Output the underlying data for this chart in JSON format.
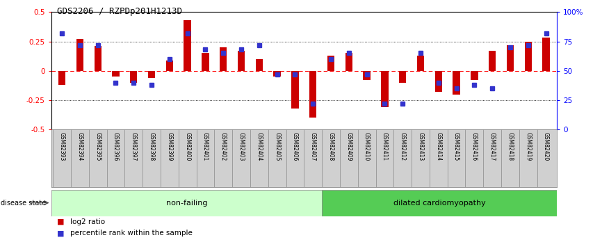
{
  "title": "GDS2206 / RZPDp201H1213D",
  "samples": [
    "GSM82393",
    "GSM82394",
    "GSM82395",
    "GSM82396",
    "GSM82397",
    "GSM82398",
    "GSM82399",
    "GSM82400",
    "GSM82401",
    "GSM82402",
    "GSM82403",
    "GSM82404",
    "GSM82405",
    "GSM82406",
    "GSM82407",
    "GSM82408",
    "GSM82409",
    "GSM82410",
    "GSM82411",
    "GSM82412",
    "GSM82413",
    "GSM82414",
    "GSM82415",
    "GSM82416",
    "GSM82417",
    "GSM82418",
    "GSM82419",
    "GSM82420"
  ],
  "log2_ratio": [
    -0.12,
    0.27,
    0.21,
    -0.05,
    -0.1,
    -0.06,
    0.09,
    0.43,
    0.15,
    0.2,
    0.17,
    0.1,
    -0.05,
    -0.32,
    -0.4,
    0.13,
    0.15,
    -0.08,
    -0.31,
    -0.1,
    0.13,
    -0.18,
    -0.2,
    -0.08,
    0.17,
    0.22,
    0.25,
    0.28
  ],
  "percentile": [
    82,
    72,
    72,
    40,
    40,
    38,
    60,
    82,
    68,
    65,
    68,
    72,
    47,
    47,
    22,
    60,
    65,
    47,
    22,
    22,
    65,
    40,
    35,
    38,
    35,
    70,
    72,
    82
  ],
  "non_failing_count": 15,
  "non_failing_label": "non-failing",
  "disease_label": "dilated cardiomyopathy",
  "bar_color": "#cc0000",
  "square_color": "#3333cc",
  "ylim": [
    -0.5,
    0.5
  ],
  "right_ylim": [
    0,
    100
  ],
  "bg_color_nf": "#ccffcc",
  "bg_color_dc": "#55cc55",
  "legend_log2": "log2 ratio",
  "legend_pct": "percentile rank within the sample"
}
